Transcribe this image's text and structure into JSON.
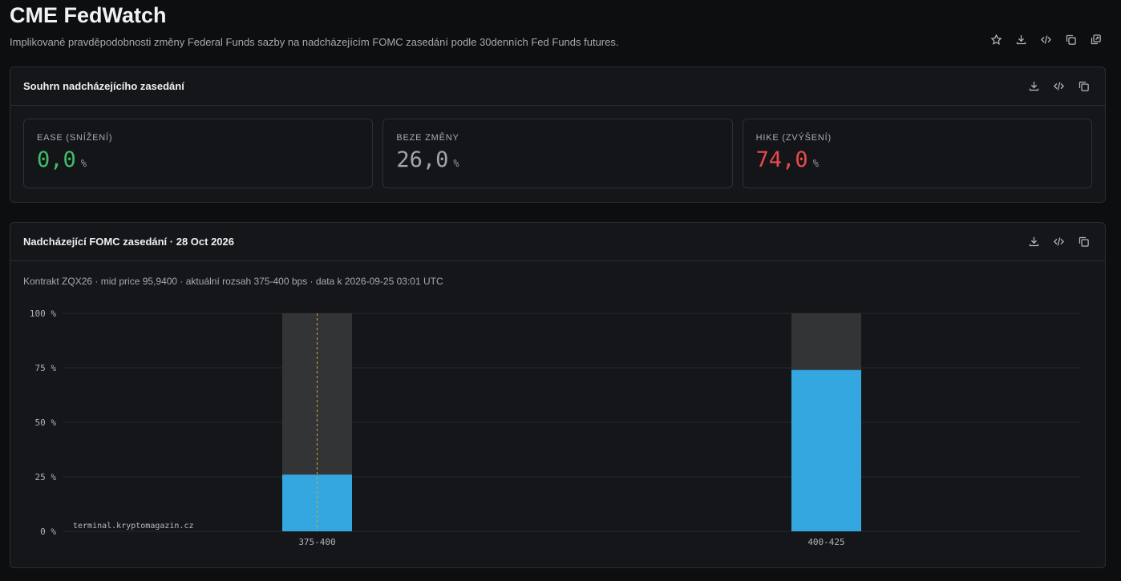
{
  "header": {
    "title": "CME FedWatch",
    "subtitle": "Implikované pravděpodobnosti změny Federal Funds sazby na nadcházejícím FOMC zasedání podle 30denních Fed Funds futures.",
    "actions": [
      "star-icon",
      "download-icon",
      "code-icon",
      "copy-icon",
      "external-copy-icon"
    ]
  },
  "summary": {
    "title": "Souhrn nadcházejícího zasedání",
    "cards": [
      {
        "label": "EASE (SNÍŽENÍ)",
        "value": "0,0",
        "unit": "%",
        "color": "#3fbf6a"
      },
      {
        "label": "BEZE ZMĚNY",
        "value": "26,0",
        "unit": "%",
        "color": "#a3a5a9"
      },
      {
        "label": "HIKE (ZVÝŠENÍ)",
        "value": "74,0",
        "unit": "%",
        "color": "#ea4a4a"
      }
    ]
  },
  "meeting": {
    "title": "Nadcházející FOMC zasedání · 28 Oct 2026",
    "info": "Kontrakt ZQX26 · mid price 95,9400 · aktuální rozsah 375-400 bps · data k 2026-09-25 03:01 UTC",
    "watermark": "terminal.kryptomagazin.cz"
  },
  "chart_data": {
    "type": "bar",
    "categories": [
      "375-400",
      "400-425"
    ],
    "values": [
      26.0,
      74.0
    ],
    "ylim": [
      0,
      100
    ],
    "yticks": [
      "0 %",
      "25 %",
      "50 %",
      "75 %",
      "100 %"
    ],
    "ytick_values": [
      0,
      25,
      50,
      75,
      100
    ],
    "grid": true,
    "current_range": "375-400",
    "colors": {
      "bar": "#35a7e0",
      "track": "#333436",
      "marker": "#e0a43a",
      "grid": "#26282c"
    }
  }
}
